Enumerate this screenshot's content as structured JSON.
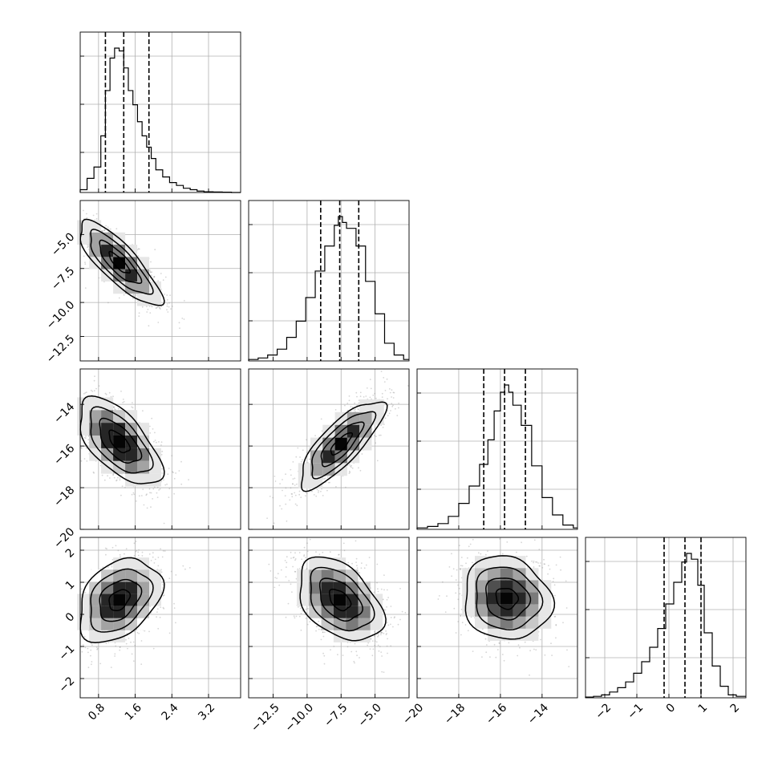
{
  "chart_data": {
    "type": "corner",
    "grid": true,
    "parameters": [
      {
        "range": [
          0.4,
          3.9
        ],
        "ticks": [
          0.8,
          1.6,
          2.4,
          3.2
        ],
        "tick_labels": [
          "0.8",
          "1.6",
          "2.4",
          "3.2"
        ],
        "quantiles": [
          0.95,
          1.35,
          1.9
        ],
        "hist_bins": [
          0.4,
          0.55,
          0.7,
          0.85,
          0.95,
          1.05,
          1.15,
          1.25,
          1.35,
          1.45,
          1.55,
          1.65,
          1.75,
          1.85,
          1.95,
          2.05,
          2.2,
          2.35,
          2.5,
          2.65,
          2.8,
          2.95,
          3.1,
          3.3,
          3.5,
          3.7,
          3.9
        ],
        "hist_counts": [
          2,
          10,
          18,
          40,
          72,
          95,
          102,
          100,
          88,
          72,
          62,
          50,
          40,
          32,
          24,
          16,
          11,
          7,
          5,
          3,
          2,
          1,
          0.5,
          0.4,
          0.2,
          0
        ]
      },
      {
        "range": [
          -14.3,
          -2.5
        ],
        "ticks": [
          -12.5,
          -10.0,
          -7.5,
          -5.0
        ],
        "tick_labels": [
          "−12.5",
          "−10.0",
          "−7.5",
          "−5.0"
        ],
        "quantiles": [
          -9.0,
          -7.6,
          -6.2
        ],
        "hist_bins": [
          -14.3,
          -13.6,
          -12.9,
          -12.2,
          -11.5,
          -10.8,
          -10.1,
          -9.4,
          -8.7,
          -8.0,
          -7.7,
          -7.4,
          -7.1,
          -6.4,
          -5.7,
          -5.0,
          -4.3,
          -3.6,
          -2.9,
          -2.5
        ],
        "hist_counts": [
          1,
          2,
          4,
          8,
          16,
          27,
          43,
          61,
          78,
          92,
          98,
          94,
          90,
          78,
          54,
          32,
          12,
          4,
          1
        ]
      },
      {
        "range": [
          -20.0,
          -12.3
        ],
        "ticks": [
          -20,
          -18,
          -16,
          -14
        ],
        "tick_labels": [
          "−20",
          "−18",
          "−16",
          "−14"
        ],
        "quantiles": [
          -16.8,
          -15.8,
          -14.8
        ],
        "hist_bins": [
          -20.0,
          -19.5,
          -19.0,
          -18.5,
          -18.0,
          -17.5,
          -17.0,
          -16.6,
          -16.3,
          -16.0,
          -15.8,
          -15.6,
          -15.4,
          -15.0,
          -14.5,
          -14.0,
          -13.5,
          -13.0,
          -12.5,
          -12.3
        ],
        "hist_counts": [
          1,
          2,
          4,
          9,
          18,
          30,
          45,
          62,
          82,
          95,
          100,
          95,
          86,
          72,
          44,
          22,
          10,
          3,
          1
        ]
      },
      {
        "range": [
          -2.6,
          2.4
        ],
        "ticks": [
          -2,
          -1,
          0,
          1,
          2
        ],
        "tick_labels": [
          "−2",
          "−1",
          "0",
          "1",
          "2"
        ],
        "quantiles": [
          -0.15,
          0.5,
          1.0
        ],
        "hist_bins": [
          -2.6,
          -2.35,
          -2.1,
          -1.85,
          -1.6,
          -1.35,
          -1.1,
          -0.85,
          -0.6,
          -0.35,
          -0.1,
          0.15,
          0.4,
          0.55,
          0.7,
          0.9,
          1.1,
          1.35,
          1.6,
          1.85,
          2.1,
          2.4
        ],
        "hist_counts": [
          0.5,
          1,
          2,
          4,
          7,
          11,
          17,
          25,
          35,
          48,
          65,
          80,
          94,
          100,
          96,
          78,
          45,
          22,
          8,
          2,
          1
        ]
      }
    ],
    "pairs": [
      {
        "x": 0,
        "y": 1,
        "center": [
          1.25,
          -7.1
        ],
        "sigma": [
          0.45,
          1.55
        ],
        "rho": -0.82
      },
      {
        "x": 0,
        "y": 2,
        "center": [
          1.25,
          -15.8
        ],
        "sigma": [
          0.45,
          1.05
        ],
        "rho": -0.62
      },
      {
        "x": 1,
        "y": 2,
        "center": [
          -7.5,
          -15.9
        ],
        "sigma": [
          1.55,
          1.05
        ],
        "rho": 0.8
      },
      {
        "x": 0,
        "y": 3,
        "center": [
          1.25,
          0.45
        ],
        "sigma": [
          0.45,
          0.65
        ],
        "rho": 0.35
      },
      {
        "x": 1,
        "y": 3,
        "center": [
          -7.6,
          0.45
        ],
        "sigma": [
          1.55,
          0.65
        ],
        "rho": -0.42
      },
      {
        "x": 2,
        "y": 3,
        "center": [
          -15.7,
          0.5
        ],
        "sigma": [
          1.05,
          0.65
        ],
        "rho": -0.1
      }
    ],
    "contour_levels_sigma": [
      0.5,
      1.0,
      1.5,
      2.0
    ]
  }
}
